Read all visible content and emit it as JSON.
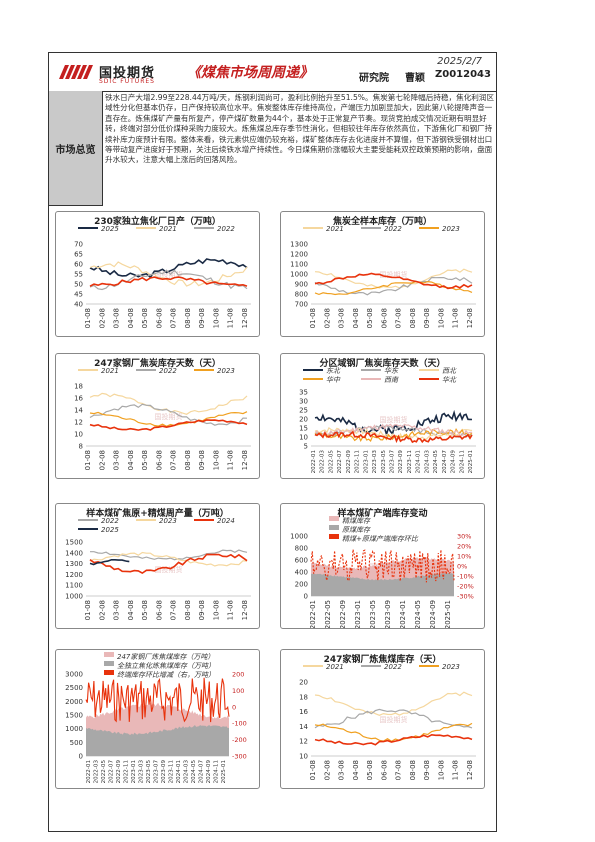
{
  "header": {
    "logo_cn": "国投期货",
    "logo_en": "SDIC FUTURES",
    "title": "《煤焦市场周周递》",
    "date": "2025/2/7",
    "dept": "研究院",
    "author": "曹颖",
    "code": "Z0012043"
  },
  "summary": {
    "label": "市场总览",
    "text": "铁水日产大增2.99至228.44万吨/天，炼钢利润尚可，盈利比例抬升至51.5%。焦炭第七轮降幅后持稳，焦化利润区域性分化但基本仍存，日产保持较高位水平。焦炭整体库存维持高位，产端压力加剧显加大，因此第八轮提降声音一直存在。炼焦煤矿产量有所复产，停产煤矿数量为44个，基本处于正常复产节奏。现货竞拍成交情况近期有明显好转，终端对部分低价煤种采购力度较大。炼焦煤总库存季节性消化，但相较往年库存依然高位，下游焦化厂和钢厂持续补库力度预计有限。整体来看，铁元素供应端仍较充裕，煤矿整体库存去化进度并不算慢，但下游钢铁受钢材出口等带动复产进度好于预期，关注后续铁水增产持续性。今日煤焦期价涨幅较大主要受能耗双控政策预期的影响，盘面升水较大，注意大幅上涨后的回落风险。"
  },
  "colors": {
    "red": "#e8320c",
    "navy": "#1a2a44",
    "gray": "#a8a8a8",
    "pink": "#e9b8b8",
    "yellow": "#f5d79e",
    "orange": "#f0a020",
    "brand": "#c41f1f"
  },
  "charts": [
    {
      "id": "c1",
      "title": "230家独立焦化厂日产（万吨）",
      "legend": [
        {
          "name": "2025",
          "color": "#1a2a44"
        },
        {
          "name": "2021",
          "color": "#f5d79e"
        },
        {
          "name": "2022",
          "color": "#a8a8a8"
        }
      ],
      "legend_extra_color": "#e8320c",
      "ylim": [
        40,
        70
      ],
      "yticks": [
        "70",
        "65",
        "60",
        "55",
        "50",
        "45",
        "40"
      ],
      "xticks": [
        "01-08",
        "02-08",
        "03-08",
        "04-08",
        "05-08",
        "06-08",
        "07-08",
        "08-08",
        "09-08",
        "10-08",
        "11-08",
        "12-08"
      ],
      "watermark": "国投期货"
    },
    {
      "id": "c2",
      "title": "焦炭全样本库存（万吨）",
      "legend": [
        {
          "name": "2021",
          "color": "#f5d79e"
        },
        {
          "name": "2022",
          "color": "#a8a8a8"
        },
        {
          "name": "2023",
          "color": "#f0a020"
        }
      ],
      "ylim": [
        700,
        1300
      ],
      "yticks": [
        "1300",
        "1200",
        "1100",
        "1000",
        "900",
        "800",
        "700"
      ],
      "xticks": [
        "01-08",
        "02-08",
        "03-08",
        "04-08",
        "05-08",
        "06-08",
        "07-08",
        "08-08",
        "09-08",
        "10-08",
        "11-08",
        "12-08"
      ],
      "watermark": "国投期货"
    },
    {
      "id": "c3",
      "title": "247家钢厂焦炭库存天数（天）",
      "legend": [
        {
          "name": "2021",
          "color": "#f5d79e"
        },
        {
          "name": "2022",
          "color": "#a8a8a8"
        },
        {
          "name": "2023",
          "color": "#f0a020"
        }
      ],
      "ylim": [
        8,
        18
      ],
      "yticks": [
        "18",
        "16",
        "14",
        "12",
        "10",
        "8"
      ],
      "xticks": [
        "01-08",
        "02-08",
        "03-08",
        "04-08",
        "05-08",
        "06-08",
        "07-08",
        "08-08",
        "09-08",
        "10-08",
        "11-08",
        "12-08"
      ],
      "watermark": "国投期货"
    },
    {
      "id": "c4",
      "title": "分区域钢厂焦炭库存天数（天）",
      "legend": [
        {
          "name": "东北",
          "color": "#1a2a44"
        },
        {
          "name": "华东",
          "color": "#a8a8a8"
        },
        {
          "name": "西北",
          "color": "#f5d79e"
        },
        {
          "name": "华中",
          "color": "#f0a020"
        },
        {
          "name": "西南",
          "color": "#e9b8b8"
        },
        {
          "name": "华北",
          "color": "#e8320c"
        }
      ],
      "ylim": [
        5,
        35
      ],
      "yticks": [
        "35",
        "30",
        "25",
        "20",
        "15",
        "10",
        "5"
      ],
      "xticks": [
        "2022-01",
        "2022-03",
        "2022-05",
        "2022-07",
        "2022-09",
        "2022-11",
        "2023-01",
        "2023-03",
        "2023-05",
        "2023-07",
        "2023-09",
        "2023-11",
        "2024-01",
        "2024-03",
        "2024-05",
        "2024-07",
        "2024-09",
        "2024-11",
        "2025-01"
      ],
      "watermark": "国投期货"
    },
    {
      "id": "c5",
      "title": "样本煤矿焦原+精煤周产量（万吨）",
      "legend": [
        {
          "name": "2022",
          "color": "#a8a8a8"
        },
        {
          "name": "2023",
          "color": "#f5d79e"
        },
        {
          "name": "2024",
          "color": "#e8320c"
        },
        {
          "name": "2025",
          "color": "#1a2a44"
        }
      ],
      "ylim": [
        1000,
        1500
      ],
      "yticks": [
        "1500",
        "1400",
        "1300",
        "1200",
        "1100",
        "1000"
      ],
      "xticks": [
        "01-08",
        "02-08",
        "03-08",
        "04-08",
        "05-08",
        "06-08",
        "07-08",
        "08-08",
        "09-08",
        "10-08",
        "11-08",
        "12-08"
      ],
      "watermark": "国投期货"
    },
    {
      "id": "c6",
      "title": "样本煤矿产端库存变动",
      "legend": [
        {
          "name": "精煤库存",
          "color": "#e9b8b8"
        },
        {
          "name": "原煤库存",
          "color": "#a8a8a8"
        },
        {
          "name": "精煤+原煤产端库存环比",
          "color": "#e8320c"
        }
      ],
      "ylim": [
        0,
        1000
      ],
      "yticks": [
        "1000",
        "800",
        "600",
        "400",
        "200",
        "0"
      ],
      "y2ticks": [
        "30%",
        "20%",
        "10%",
        "0%",
        "-10%",
        "-20%",
        "-30%"
      ],
      "xticks": [
        "2022-01",
        "2022-05",
        "2022-09",
        "2023-01",
        "2023-05",
        "2023-09",
        "2024-01",
        "2024-05",
        "2024-09",
        "2025-01"
      ],
      "watermark": "国投期货"
    },
    {
      "id": "c7",
      "title": "",
      "legend": [
        {
          "name": "247家钢厂炼焦煤库存（万吨）",
          "color": "#e9b8b8"
        },
        {
          "name": "全独立焦化炼焦煤库存（万吨）",
          "color": "#a8a8a8"
        },
        {
          "name": "终端库存环比增减（右，万吨）",
          "color": "#e8320c"
        }
      ],
      "ylim": [
        0,
        3000
      ],
      "yticks": [
        "3000",
        "2500",
        "2000",
        "1500",
        "1000",
        "500",
        "0"
      ],
      "y2ticks": [
        "200",
        "100",
        "0",
        "-100",
        "-200",
        "-300"
      ],
      "xticks": [
        "2022-01",
        "2022-03",
        "2022-05",
        "2022-07",
        "2022-09",
        "2022-11",
        "2023-01",
        "2023-03",
        "2023-05",
        "2023-07",
        "2023-09",
        "2023-11",
        "2024-01",
        "2024-03",
        "2024-05",
        "2024-07",
        "2024-09",
        "2024-11",
        "2025-01"
      ],
      "watermark": "国投期货"
    },
    {
      "id": "c8",
      "title": "247家钢厂炼焦煤库存（天）",
      "legend": [
        {
          "name": "2021",
          "color": "#f5d79e"
        },
        {
          "name": "2022",
          "color": "#a8a8a8"
        },
        {
          "name": "2023",
          "color": "#f0a020"
        }
      ],
      "ylim": [
        10,
        20
      ],
      "yticks": [
        "20",
        "18",
        "16",
        "14",
        "12",
        "10"
      ],
      "xticks": [
        "01-08",
        "02-08",
        "03-08",
        "04-08",
        "05-08",
        "06-08",
        "07-08",
        "08-08",
        "09-08",
        "10-08",
        "11-08",
        "12-08"
      ],
      "watermark": "国投期货"
    }
  ]
}
